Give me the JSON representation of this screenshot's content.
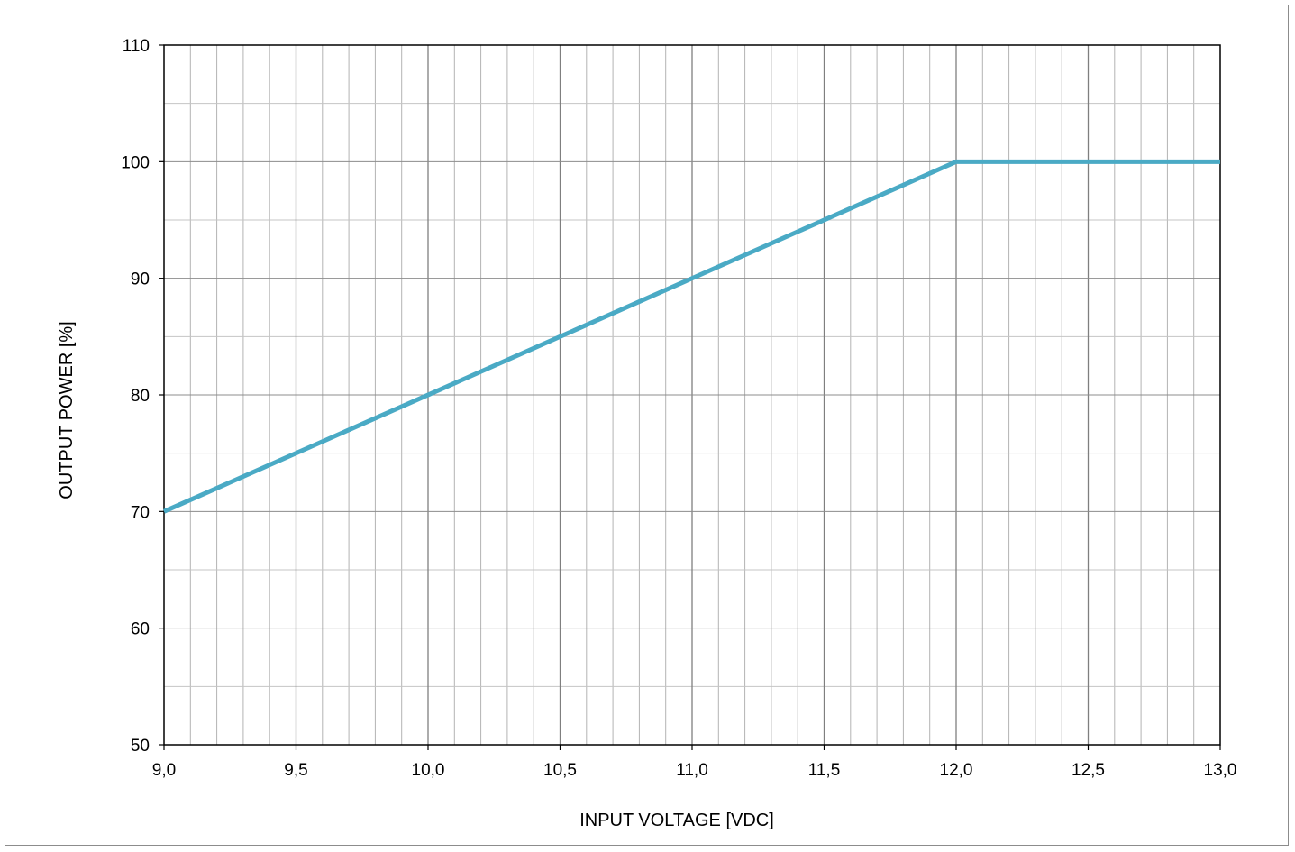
{
  "chart_data": {
    "type": "line",
    "title": "",
    "xlabel": "INPUT VOLTAGE [VDC]",
    "ylabel": "OUTPUT POWER [%]",
    "xlim": [
      9.0,
      13.0
    ],
    "ylim": [
      50,
      110
    ],
    "x_ticks": [
      "9,0",
      "9,5",
      "10,0",
      "10,5",
      "11,0",
      "11,5",
      "12,0",
      "12,5",
      "13,0"
    ],
    "y_ticks": [
      "50",
      "60",
      "70",
      "80",
      "90",
      "100",
      "110"
    ],
    "x_minor_step": 0.1,
    "y_minor_step": 5,
    "grid": true,
    "series": [
      {
        "x": [
          9.0,
          12.0,
          13.0
        ],
        "y": [
          70,
          100,
          100
        ],
        "color": "#4aaac5"
      }
    ]
  }
}
